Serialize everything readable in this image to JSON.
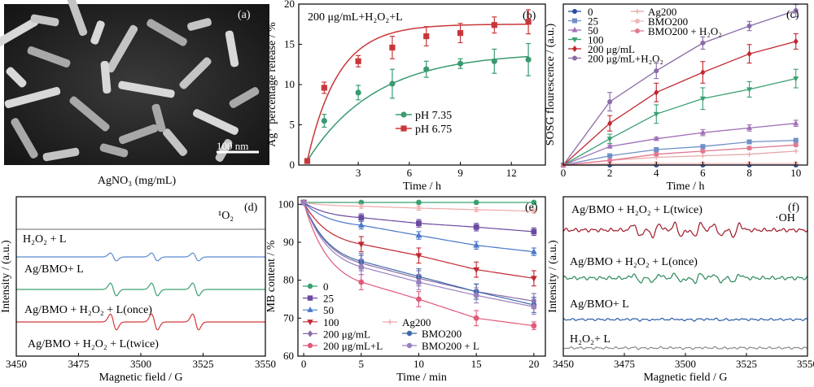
{
  "figure": {
    "panel_a": {
      "letter": "(a)",
      "scalebar": "100 nm",
      "caption": "AgNO₃ (mg/mL)"
    }
  },
  "chart_data": [
    {
      "panel": "(b)",
      "type": "scatter",
      "title": "200 μg/mL+H₂O₂+L",
      "xlabel": "Time / h",
      "ylabel": "Ag⁺ percentage release / %",
      "xlim": [
        -0.5,
        14
      ],
      "ylim": [
        0,
        20
      ],
      "xticks": [
        3,
        6,
        9,
        12
      ],
      "yticks": [
        0,
        5,
        10,
        15,
        20
      ],
      "legend_position": "lower-right",
      "series": [
        {
          "name": "pH 7.35",
          "color": "#3a9a70",
          "marker": "circle",
          "x": [
            0,
            1,
            3,
            5,
            7,
            9,
            11,
            13
          ],
          "y": [
            0.5,
            5.5,
            9.0,
            10.1,
            11.9,
            12.6,
            12.9,
            13.1
          ],
          "err": [
            0.2,
            0.8,
            0.9,
            1.8,
            1.0,
            0.6,
            1.5,
            2.0
          ],
          "fit": {
            "a": 14.0,
            "k": 0.25
          }
        },
        {
          "name": "pH 6.75",
          "color": "#c8383a",
          "marker": "square",
          "x": [
            0,
            1,
            3,
            5,
            7,
            9,
            11,
            13
          ],
          "y": [
            0.5,
            9.6,
            12.9,
            14.6,
            16.0,
            16.4,
            17.4,
            17.8
          ],
          "err": [
            0.2,
            0.7,
            0.7,
            1.4,
            1.2,
            1.2,
            1.0,
            1.5
          ],
          "fit": {
            "a": 17.5,
            "k": 0.55
          }
        }
      ]
    },
    {
      "panel": "(c)",
      "type": "scatter",
      "xlabel": "Time / h",
      "ylabel": "SOSG flourescence / (a.u.)",
      "xlim": [
        0,
        10.5
      ],
      "ylim": [
        0,
        1.0
      ],
      "xticks": [
        0,
        2,
        4,
        6,
        8,
        10
      ],
      "yticks": [],
      "legend_position": "top-left",
      "series": [
        {
          "name": "0",
          "color": "#2a4a9a",
          "marker": "circle",
          "x": [
            0,
            2,
            4,
            6,
            8,
            10
          ],
          "y": [
            0,
            0,
            0,
            0,
            0,
            0
          ],
          "err": [
            0,
            0,
            0,
            0,
            0,
            0
          ]
        },
        {
          "name": "25",
          "color": "#7090c8",
          "marker": "square",
          "x": [
            0,
            2,
            4,
            6,
            8,
            10
          ],
          "y": [
            0,
            0.06,
            0.1,
            0.12,
            0.15,
            0.16
          ],
          "err": [
            0,
            0.01,
            0.01,
            0.01,
            0.01,
            0.01
          ]
        },
        {
          "name": "50",
          "color": "#a070b8",
          "marker": "triangle",
          "x": [
            0,
            2,
            4,
            6,
            8,
            10
          ],
          "y": [
            0,
            0.12,
            0.17,
            0.21,
            0.24,
            0.27
          ],
          "err": [
            0,
            0.01,
            0.01,
            0.02,
            0.02,
            0.02
          ]
        },
        {
          "name": "100",
          "color": "#3aa072",
          "marker": "triangle-down",
          "x": [
            0,
            2,
            4,
            6,
            8,
            10
          ],
          "y": [
            0,
            0.17,
            0.33,
            0.43,
            0.49,
            0.56
          ],
          "err": [
            0,
            0.03,
            0.06,
            0.07,
            0.05,
            0.06
          ]
        },
        {
          "name": "200 μg/mL",
          "color": "#c02830",
          "marker": "diamond",
          "x": [
            0,
            2,
            4,
            6,
            8,
            10
          ],
          "y": [
            0,
            0.27,
            0.47,
            0.6,
            0.72,
            0.8
          ],
          "err": [
            0,
            0.05,
            0.06,
            0.07,
            0.06,
            0.05
          ]
        },
        {
          "name": "200 μg/mL+H₂O₂",
          "color": "#8a6aa8",
          "marker": "circle",
          "x": [
            0,
            2,
            4,
            6,
            8,
            10
          ],
          "y": [
            0,
            0.41,
            0.61,
            0.79,
            0.9,
            1.0
          ],
          "err": [
            0,
            0.06,
            0.05,
            0.04,
            0.03,
            0.04
          ]
        },
        {
          "name": "Ag200",
          "color": "#e8a8a8",
          "marker": "plus",
          "x": [
            0,
            2,
            4,
            6,
            8,
            10
          ],
          "y": [
            0,
            0.03,
            0.05,
            0.06,
            0.07,
            0.09
          ],
          "err": [
            0,
            0,
            0,
            0,
            0,
            0
          ]
        },
        {
          "name": "BMO200",
          "color": "#f0b8b8",
          "marker": "circle",
          "x": [
            0,
            2,
            4,
            6,
            8,
            10
          ],
          "y": [
            0,
            0.01,
            0.01,
            0.01,
            0.01,
            0.01
          ],
          "err": [
            0,
            0,
            0,
            0,
            0,
            0
          ]
        },
        {
          "name": "BMO200 + H₂O₂",
          "color": "#e07890",
          "marker": "circle",
          "x": [
            0,
            2,
            4,
            6,
            8,
            10
          ],
          "y": [
            0,
            0.03,
            0.07,
            0.09,
            0.11,
            0.13
          ],
          "err": [
            0,
            0,
            0.01,
            0.01,
            0.01,
            0.01
          ]
        }
      ]
    },
    {
      "panel": "(d)",
      "type": "line",
      "xlabel": "Magnetic field / G",
      "ylabel": "Intensity / (a.u.)",
      "xlim": [
        3450,
        3550
      ],
      "xticks": [
        3450,
        3475,
        3500,
        3525,
        3550
      ],
      "annotation": "¹O₂",
      "peaks": [
        3489,
        3505.5,
        3522
      ],
      "series": [
        {
          "name": "H₂O₂ + L",
          "color": "#888888",
          "amp": 0
        },
        {
          "name": "Ag/BMO+ L",
          "color": "#5a8ad0",
          "amp": 1.0
        },
        {
          "name": "Ag/BMO + H₂O₂ + L(once)",
          "color": "#3aa070",
          "amp": 1.6
        },
        {
          "name": "Ag/BMO + H₂O₂ + L(twice)",
          "color": "#d03a3a",
          "amp": 2.0
        }
      ]
    },
    {
      "panel": "(e)",
      "type": "scatter",
      "xlabel": "Time / min",
      "ylabel": "MB content / %",
      "xlim": [
        -0.5,
        21
      ],
      "ylim": [
        60,
        102
      ],
      "xticks": [
        0,
        5,
        10,
        15,
        20
      ],
      "yticks": [
        60,
        70,
        80,
        90,
        100
      ],
      "legend_position": "bottom-left",
      "series": [
        {
          "name": "0",
          "color": "#3aa070",
          "marker": "circle",
          "x": [
            0,
            5,
            10,
            15,
            20
          ],
          "y": [
            100.5,
            100.5,
            100.5,
            100.5,
            100.5
          ],
          "err": [
            0,
            0,
            0,
            0,
            0
          ]
        },
        {
          "name": "25",
          "color": "#6a4aa0",
          "marker": "square",
          "x": [
            0,
            5,
            10,
            15,
            20
          ],
          "y": [
            100.5,
            96.5,
            95.0,
            94.0,
            92.8
          ],
          "err": [
            0,
            1,
            1,
            1,
            1
          ]
        },
        {
          "name": "50",
          "color": "#4a78c8",
          "marker": "triangle",
          "x": [
            0,
            5,
            10,
            15,
            20
          ],
          "y": [
            100.5,
            94.5,
            91.8,
            89.2,
            87.5
          ],
          "err": [
            0,
            1,
            1,
            1,
            1
          ]
        },
        {
          "name": "100",
          "color": "#c02830",
          "marker": "triangle-down",
          "x": [
            0,
            5,
            10,
            15,
            20
          ],
          "y": [
            100.5,
            89.5,
            86.5,
            82.8,
            80.5
          ],
          "err": [
            0,
            2,
            2,
            2,
            2
          ]
        },
        {
          "name": "200 μg/mL",
          "color": "#8a6aa8",
          "marker": "diamond",
          "x": [
            0,
            5,
            10,
            15,
            20
          ],
          "y": [
            100.5,
            84.5,
            80.5,
            77.0,
            74.5
          ],
          "err": [
            0,
            2,
            2,
            2,
            2
          ]
        },
        {
          "name": "200 μg/mL+L",
          "color": "#e05a7a",
          "marker": "circle",
          "x": [
            0,
            5,
            10,
            15,
            20
          ],
          "y": [
            100.5,
            79.5,
            75.0,
            70.0,
            68.0
          ],
          "err": [
            0,
            2,
            2,
            2,
            1
          ]
        },
        {
          "name": "Ag200",
          "color": "#f0a8a8",
          "marker": "plus",
          "x": [
            0,
            5,
            10,
            15,
            20
          ],
          "y": [
            100.5,
            99.5,
            99.0,
            98.6,
            98.2
          ],
          "err": [
            0,
            0.5,
            0.5,
            0.5,
            0.5
          ]
        },
        {
          "name": "BMO200",
          "color": "#3a6aa8",
          "marker": "circle",
          "x": [
            0,
            5,
            10,
            15,
            20
          ],
          "y": [
            100.5,
            85.0,
            81.0,
            77.0,
            73.5
          ],
          "err": [
            0,
            2,
            2,
            2,
            2
          ]
        },
        {
          "name": "BMO200 + L",
          "color": "#9a80c0",
          "marker": "circle",
          "x": [
            0,
            5,
            10,
            15,
            20
          ],
          "y": [
            100.5,
            83.5,
            79.5,
            76.0,
            73.0
          ],
          "err": [
            0,
            2,
            2,
            2,
            2
          ]
        }
      ]
    },
    {
      "panel": "(f)",
      "type": "line",
      "xlabel": "Magnetic field / G",
      "ylabel": "Intensity / (a.u.)",
      "xlim": [
        3450,
        3550
      ],
      "xticks": [
        3450,
        3475,
        3500,
        3525,
        3550
      ],
      "annotation": "·OH",
      "peaks": [
        3480,
        3488,
        3497,
        3505,
        3513,
        3521
      ],
      "series": [
        {
          "name": "Ag/BMO + H₂O₂ + L(twice)",
          "color": "#a01828",
          "amp": 1.6
        },
        {
          "name": "Ag/BMO + H₂O₂ + L(once)",
          "color": "#2a8a5a",
          "amp": 1.0
        },
        {
          "name": "Ag/BMO+ L",
          "color": "#2a5aa8",
          "amp": 0.15
        },
        {
          "name": "H₂O₂+ L",
          "color": "#888888",
          "amp": 0.1
        }
      ]
    }
  ]
}
